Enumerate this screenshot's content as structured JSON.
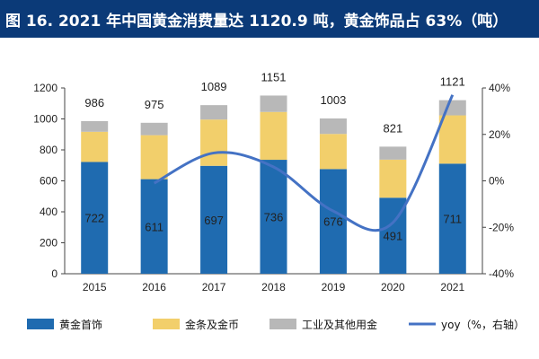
{
  "title": "图 16. 2021 年中国黄金消费量达 1120.9 吨，黄金饰品占 63%（吨）",
  "chart_data": {
    "type": "bar",
    "stacked": true,
    "categories": [
      "2015",
      "2016",
      "2017",
      "2018",
      "2019",
      "2020",
      "2021"
    ],
    "series": [
      {
        "name": "黄金首饰",
        "color": "#1f6bb0",
        "values": [
          722,
          611,
          697,
          736,
          676,
          491,
          711
        ]
      },
      {
        "name": "金条及金币",
        "color": "#f2cf6b",
        "values": [
          195,
          284,
          299,
          309,
          227,
          246,
          312
        ]
      },
      {
        "name": "工业及其他用金",
        "color": "#b8b8b8",
        "values": [
          69,
          80,
          93,
          106,
          100,
          84,
          98
        ]
      }
    ],
    "totals": [
      986,
      975,
      1089,
      1151,
      1003,
      821,
      1121
    ],
    "line_series": {
      "name": "yoy（%，右轴）",
      "color": "#4472c4",
      "categories": [
        "2016",
        "2017",
        "2018",
        "2019",
        "2020",
        "2021"
      ],
      "values": [
        -1,
        12,
        6,
        -13,
        -18,
        37
      ]
    },
    "ylim": [
      0,
      1200
    ],
    "yticks": [
      0,
      200,
      400,
      600,
      800,
      1000,
      1200
    ],
    "y2lim": [
      -40,
      40
    ],
    "y2ticks": [
      "-40%",
      "-20%",
      "0%",
      "20%",
      "40%"
    ],
    "y2tick_values": [
      -40,
      -20,
      0,
      20,
      40
    ],
    "legend": [
      "黄金首饰",
      "金条及金币",
      "工业及其他用金",
      "yoy（%，右轴）"
    ],
    "legend_position": "bottom"
  }
}
